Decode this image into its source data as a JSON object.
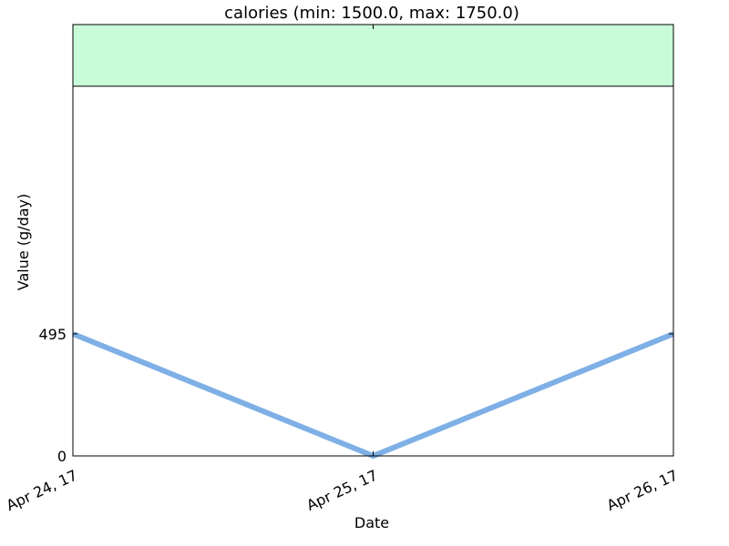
{
  "chart_data": {
    "type": "line",
    "title": "calories (min: 1500.0, max: 1750.0)",
    "xlabel": "Date",
    "ylabel": "Value (g/day)",
    "x": [
      "Apr 24, 17",
      "Apr 25, 17",
      "Apr 26, 17"
    ],
    "series": [
      {
        "values": [
          495,
          0,
          495
        ],
        "color": "#7eb0e6"
      }
    ],
    "ylim": [
      0,
      1750
    ],
    "yticks": [
      0,
      495
    ],
    "target_band": {
      "min": 1500.0,
      "max": 1750.0,
      "color": "#c8fcd9"
    },
    "grid": false,
    "legend": "none"
  }
}
